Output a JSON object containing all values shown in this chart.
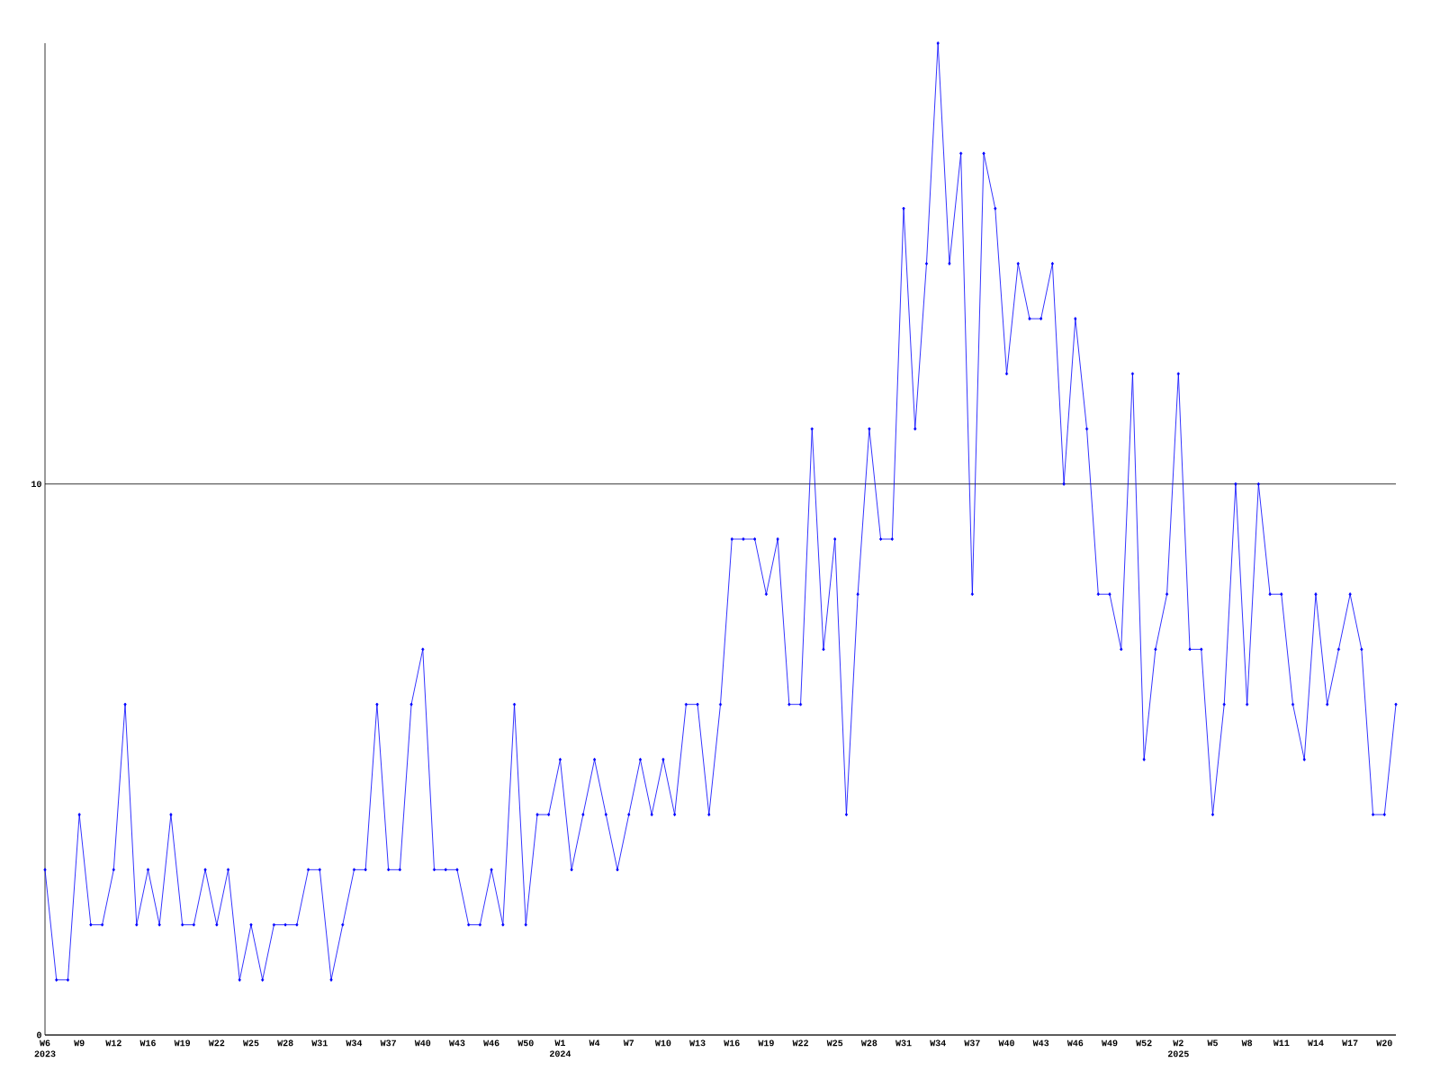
{
  "chart_data": {
    "type": "line",
    "categories": [
      "W6 2023",
      null,
      null,
      "W9",
      null,
      null,
      "W12",
      null,
      null,
      "W16",
      null,
      null,
      "W19",
      null,
      null,
      "W22",
      null,
      null,
      "W25",
      null,
      null,
      "W28",
      null,
      null,
      "W31",
      null,
      null,
      "W34",
      null,
      null,
      "W37",
      null,
      null,
      "W40",
      null,
      null,
      "W43",
      null,
      null,
      "W46",
      null,
      null,
      "W50",
      null,
      null,
      "W1 2024",
      null,
      null,
      "W4",
      null,
      null,
      "W7",
      null,
      null,
      "W10",
      null,
      null,
      "W13",
      null,
      null,
      "W16",
      null,
      null,
      "W19",
      null,
      null,
      "W22",
      null,
      null,
      "W25",
      null,
      null,
      "W28",
      null,
      null,
      "W31",
      null,
      null,
      "W34",
      null,
      null,
      "W37",
      null,
      null,
      "W40",
      null,
      null,
      "W43",
      null,
      null,
      "W46",
      null,
      null,
      "W49",
      null,
      null,
      "W52",
      null,
      null,
      "W2 2025",
      null,
      null,
      "W5",
      null,
      null,
      "W8",
      null,
      null,
      "W11",
      null,
      null,
      "W14",
      null,
      null,
      "W17",
      null,
      null,
      "W20",
      null
    ],
    "series": [
      {
        "color": "#0000ff",
        "values": [
          3,
          1,
          1,
          4,
          2,
          2,
          3,
          6,
          2,
          3,
          2,
          4,
          2,
          2,
          3,
          2,
          3,
          1,
          2,
          1,
          2,
          2,
          2,
          3,
          3,
          1,
          2,
          3,
          3,
          6,
          3,
          3,
          6,
          7,
          3,
          3,
          3,
          2,
          2,
          3,
          2,
          6,
          2,
          4,
          4,
          5,
          3,
          4,
          5,
          4,
          3,
          4,
          5,
          4,
          5,
          4,
          6,
          6,
          4,
          6,
          9,
          9,
          9,
          8,
          9,
          6,
          6,
          11,
          7,
          9,
          4,
          8,
          11,
          9,
          9,
          15,
          11,
          14,
          18,
          14,
          16,
          8,
          16,
          15,
          12,
          14,
          13,
          13,
          14,
          10,
          13,
          11,
          8,
          8,
          7,
          12,
          5,
          7,
          8,
          12,
          7,
          7,
          4,
          6,
          10,
          6,
          10,
          8,
          8,
          6,
          5,
          8,
          6,
          7,
          8,
          7,
          4,
          4,
          6
        ]
      }
    ],
    "ylim": [
      0,
      18
    ],
    "yticks": [
      0,
      10
    ],
    "grid": "y",
    "marker": "diamond"
  }
}
